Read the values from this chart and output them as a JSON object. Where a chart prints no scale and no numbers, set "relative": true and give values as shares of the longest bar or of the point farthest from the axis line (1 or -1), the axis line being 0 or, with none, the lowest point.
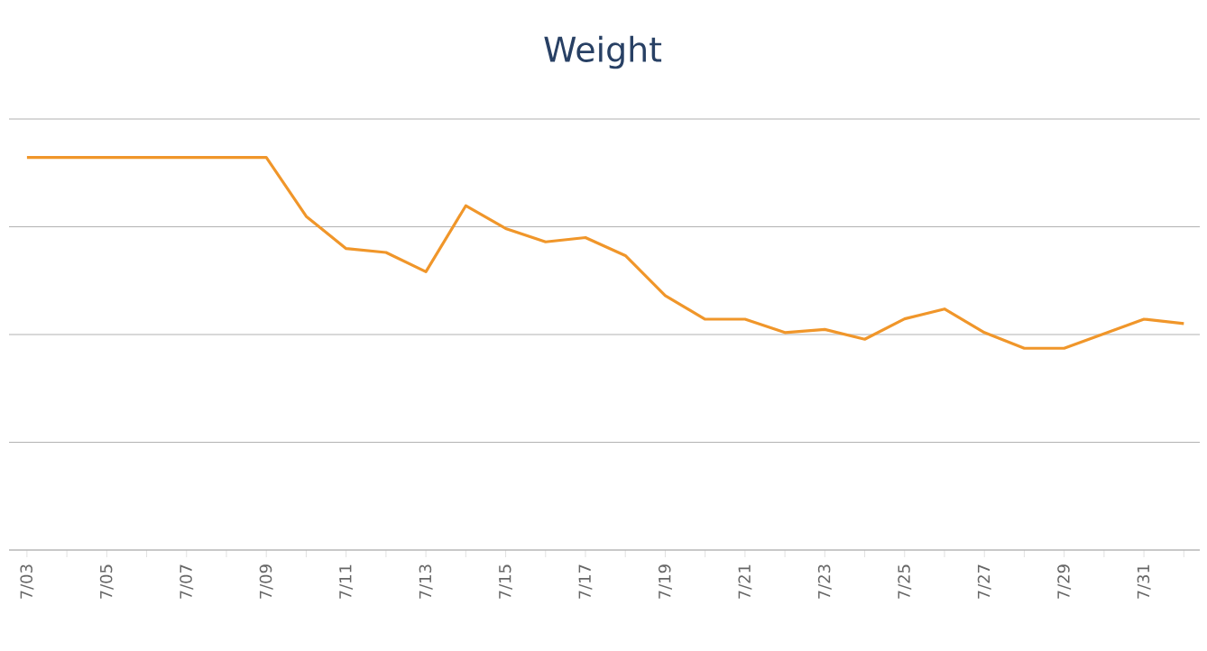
{
  "chart_data": {
    "type": "line",
    "title": "Weight",
    "relative": true,
    "grid": "y",
    "marker": "none",
    "line_style": "solid",
    "categories": [
      "7/03",
      null,
      "7/05",
      null,
      "7/07",
      null,
      "7/09",
      null,
      "7/11",
      null,
      "7/13",
      null,
      "7/15",
      null,
      "7/17",
      null,
      "7/19",
      null,
      "7/21",
      null,
      "7/23",
      null,
      "7/25",
      null,
      "7/27",
      null,
      "7/29",
      null,
      "7/31",
      null
    ],
    "series": [
      {
        "color": "#f0962a",
        "values": [
          1,
          1,
          1,
          1,
          1,
          1,
          1,
          0.85,
          0.768,
          0.758,
          0.709,
          0.877,
          0.819,
          0.785,
          0.796,
          0.75,
          0.648,
          0.588,
          0.588,
          0.554,
          0.562,
          0.537,
          0.589,
          0.614,
          0.554,
          0.514,
          0.514,
          0.551,
          0.588,
          0.577
        ]
      }
    ]
  }
}
